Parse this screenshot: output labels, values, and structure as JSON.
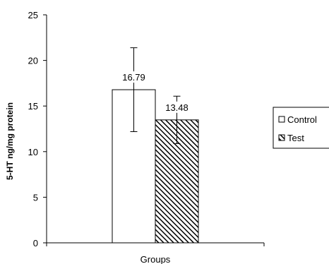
{
  "chart_data": {
    "type": "bar",
    "categories": [
      "Groups"
    ],
    "series": [
      {
        "name": "Control",
        "values": [
          16.79
        ],
        "error": [
          4.6
        ],
        "label": "16.79",
        "fill": "#ffffff",
        "pattern": "none"
      },
      {
        "name": "Test",
        "values": [
          13.48
        ],
        "error": [
          2.6
        ],
        "label": "13.48",
        "fill": "#ffffff",
        "pattern": "diagonal-hatch"
      }
    ],
    "xlabel": "Groups",
    "ylabel": "5-HT ng/mg protein",
    "ylim": [
      0,
      25
    ],
    "yticks": [
      "0",
      "5",
      "10",
      "15",
      "20",
      "25"
    ],
    "grid": false,
    "legend_position": "right",
    "colors": {
      "axis": "#000000",
      "bar_edge": "#000000",
      "hatch": "#000000"
    }
  }
}
